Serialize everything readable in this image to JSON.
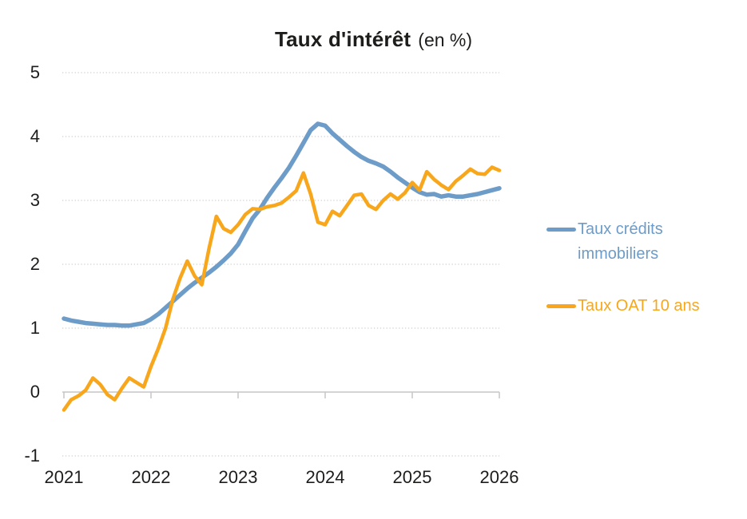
{
  "title": {
    "main": "Taux d'intérêt",
    "suffix": "(en %)"
  },
  "legend": [
    {
      "line1": "Taux crédits",
      "line2": "immobiliers"
    },
    {
      "line1": "Taux OAT 10 ans",
      "line2": ""
    }
  ],
  "colors": {
    "credit_line": "#6D9CC8",
    "oat_line": "#F8A71C",
    "gridline": "#cfcfcf",
    "axis": "#c6c6c6",
    "text": "#1d1d1b"
  },
  "chart_data": {
    "type": "line",
    "title": "Taux d'intérêt",
    "subtitle": "(en %)",
    "x_unit": "monthly",
    "x_range": [
      "2021-01",
      "2026-01"
    ],
    "ylim": [
      -1,
      5
    ],
    "grid": "horizontal-dotted",
    "legend_position": "right",
    "yticks": [
      {
        "label": "5",
        "value": 5
      },
      {
        "label": "4",
        "value": 4
      },
      {
        "label": "3",
        "value": 3
      },
      {
        "label": "2",
        "value": 2
      },
      {
        "label": "1",
        "value": 1
      },
      {
        "label": "0",
        "value": 0
      },
      {
        "label": "-1",
        "value": -1
      }
    ],
    "xticks": [
      {
        "label": "2021"
      },
      {
        "label": "2022"
      },
      {
        "label": "2023"
      },
      {
        "label": "2024"
      },
      {
        "label": "2025"
      },
      {
        "label": "2026"
      }
    ],
    "series": [
      {
        "name": "Taux crédits immobiliers",
        "color": "#6D9CC8",
        "line_width": 5.5,
        "values": [
          1.15,
          1.12,
          1.1,
          1.08,
          1.07,
          1.06,
          1.05,
          1.05,
          1.04,
          1.04,
          1.06,
          1.08,
          1.14,
          1.22,
          1.32,
          1.42,
          1.52,
          1.62,
          1.71,
          1.79,
          1.87,
          1.96,
          2.06,
          2.17,
          2.31,
          2.52,
          2.72,
          2.86,
          3.04,
          3.2,
          3.35,
          3.51,
          3.7,
          3.9,
          4.1,
          4.2,
          4.17,
          4.05,
          3.95,
          3.85,
          3.76,
          3.68,
          3.62,
          3.58,
          3.53,
          3.45,
          3.36,
          3.28,
          3.2,
          3.13,
          3.09,
          3.1,
          3.06,
          3.08,
          3.06,
          3.06,
          3.08,
          3.1,
          3.13,
          3.16,
          3.19
        ]
      },
      {
        "name": "Taux OAT 10 ans",
        "color": "#F8A71C",
        "line_width": 4.5,
        "values": [
          -0.28,
          -0.12,
          -0.06,
          0.03,
          0.22,
          0.12,
          -0.04,
          -0.12,
          0.06,
          0.22,
          0.15,
          0.08,
          0.4,
          0.68,
          1.0,
          1.45,
          1.78,
          2.05,
          1.82,
          1.68,
          2.25,
          2.75,
          2.56,
          2.5,
          2.62,
          2.78,
          2.87,
          2.86,
          2.9,
          2.92,
          2.96,
          3.05,
          3.15,
          3.43,
          3.1,
          2.66,
          2.62,
          2.83,
          2.76,
          2.92,
          3.08,
          3.1,
          2.92,
          2.86,
          3.0,
          3.1,
          3.02,
          3.12,
          3.28,
          3.16,
          3.45,
          3.33,
          3.24,
          3.17,
          3.3,
          3.39,
          3.49,
          3.42,
          3.41,
          3.52,
          3.47
        ]
      }
    ]
  }
}
